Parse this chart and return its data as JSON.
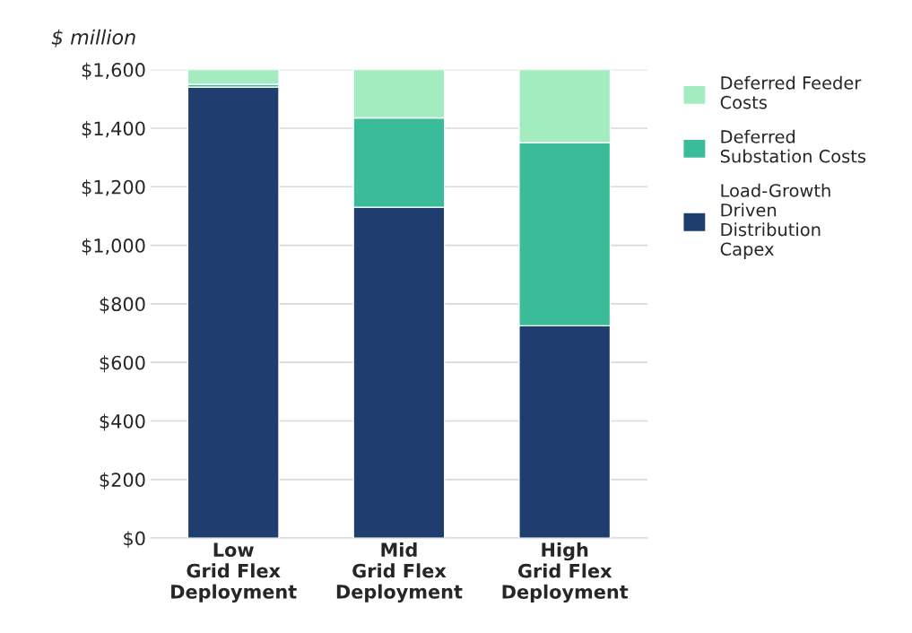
{
  "chart_data": {
    "type": "bar",
    "stacked": true,
    "ylabel": "$ million",
    "categories": [
      "Low\nGrid Flex\nDeployment",
      "Mid\nGrid Flex\nDeployment",
      "High\nGrid Flex\nDeployment"
    ],
    "series": [
      {
        "name": "Load-Growth\nDriven\nDistribution\nCapex",
        "color": "#1f3d6e",
        "values": [
          1540,
          1130,
          725
        ]
      },
      {
        "name": "Deferred\nSubstation Costs",
        "color": "#3bbc98",
        "values": [
          10,
          305,
          625
        ]
      },
      {
        "name": "Deferred Feeder\nCosts",
        "color": "#a2ecc0",
        "values": [
          50,
          165,
          250
        ]
      }
    ],
    "ylim": [
      0,
      1600
    ],
    "yticks": [
      {
        "value": 0,
        "label": "$0"
      },
      {
        "value": 200,
        "label": "$200"
      },
      {
        "value": 400,
        "label": "$400"
      },
      {
        "value": 600,
        "label": "$600"
      },
      {
        "value": 800,
        "label": "$800"
      },
      {
        "value": 1000,
        "label": "$1,000"
      },
      {
        "value": 1200,
        "label": "$1,200"
      },
      {
        "value": 1400,
        "label": "$1,400"
      },
      {
        "value": 1600,
        "label": "$1,600"
      }
    ],
    "grid": "y",
    "legend": "right"
  }
}
